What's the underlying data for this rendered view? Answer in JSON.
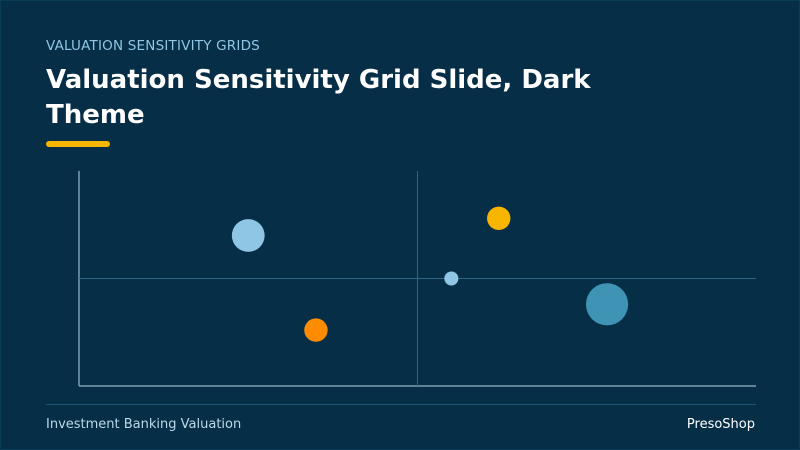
{
  "slide": {
    "eyebrow": "VALUATION SENSITIVITY GRIDS",
    "title": "Valuation Sensitivity Grid Slide, Dark Theme",
    "footer_left": "Investment Banking Valuation",
    "footer_right": "PresoShop"
  },
  "colors": {
    "background": "#062f47",
    "accent": "#f7b500",
    "axis": "#7d9fb1",
    "grid": "#2d6683"
  },
  "chart_data": {
    "type": "scatter",
    "title": "",
    "xlabel": "",
    "ylabel": "",
    "xlim": [
      0,
      100
    ],
    "ylim": [
      0,
      100
    ],
    "quadrant_divider": {
      "x": 50,
      "y": 50
    },
    "grid": false,
    "legend": "none",
    "points": [
      {
        "x": 25,
        "y": 70,
        "size": 3,
        "color": "#8fc6e6"
      },
      {
        "x": 35,
        "y": 26,
        "size": 2,
        "color": "#ff8c00"
      },
      {
        "x": 55,
        "y": 50,
        "size": 1,
        "color": "#8fc6e6"
      },
      {
        "x": 62,
        "y": 78,
        "size": 2,
        "color": "#f7b500"
      },
      {
        "x": 78,
        "y": 38,
        "size": 4,
        "color": "#3f93b4"
      }
    ]
  }
}
